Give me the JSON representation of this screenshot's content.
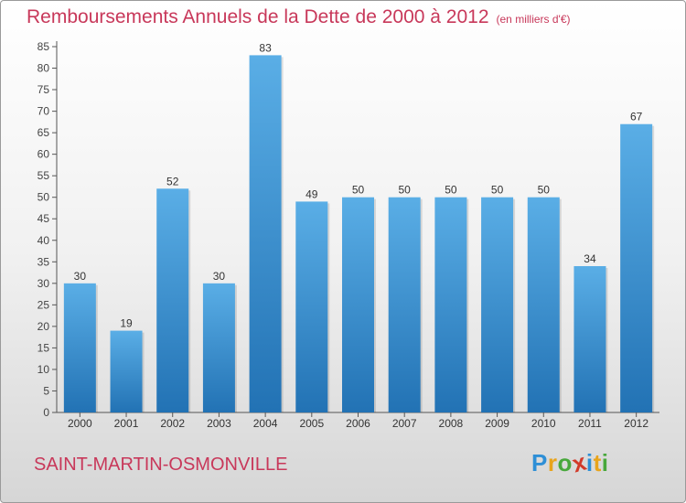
{
  "chart_data": {
    "type": "bar",
    "title": "Remboursements Annuels de la Dette de 2000 à 2012",
    "unit_note": "(en milliers d'€)",
    "categories": [
      "2000",
      "2001",
      "2002",
      "2003",
      "2004",
      "2005",
      "2006",
      "2007",
      "2008",
      "2009",
      "2010",
      "2011",
      "2012"
    ],
    "values": [
      30,
      19,
      52,
      30,
      83,
      49,
      50,
      50,
      50,
      50,
      50,
      34,
      67
    ],
    "ylim": [
      0,
      85
    ],
    "yticks": [
      0,
      5,
      10,
      15,
      20,
      25,
      30,
      35,
      40,
      45,
      50,
      55,
      60,
      65,
      70,
      75,
      80,
      85
    ],
    "grid": false,
    "bar_color_top": "#5aaee6",
    "bar_color_bottom": "#2272b4",
    "axis_color": "#555555"
  },
  "commune": "SAINT-MARTIN-OSMONVILLE",
  "logo": {
    "letters": [
      "P",
      "r",
      "o",
      "x",
      "i",
      "t",
      "i"
    ],
    "colors": [
      "#2e8fd6",
      "#e8a41c",
      "#48a83c",
      "#d23a2a",
      "#2e8fd6",
      "#e8a41c",
      "#48a83c"
    ]
  },
  "colors": {
    "title": "#c8385a"
  }
}
